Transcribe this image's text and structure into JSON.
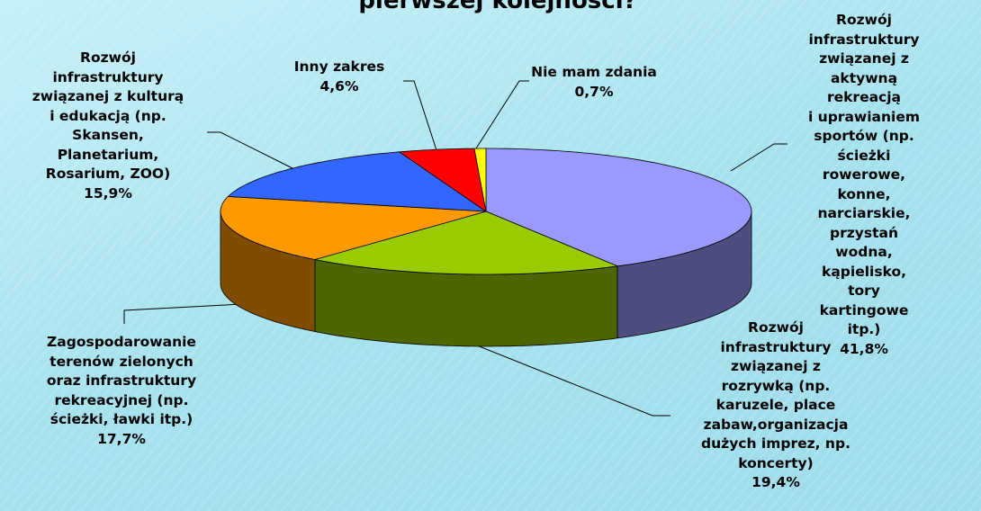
{
  "chart_data": {
    "type": "pie",
    "title": "pierwszej kolejności?",
    "categories": [
      "Rozwój\ninfrastruktury\nzwiązanej z\naktywną rekreacją\ni uprawianiem\nsportów (np.\nścieżki rowerowe,\nkonne, narciarskie,\nprzystań wodna,\nkąpielisko, tory\nkartingowe itp.)",
      "Rozwój\ninfrastruktury\nzwiązanej z\nrozrywką (np.\nkaruzele, place\nzabaw,organizacja\ndużych imprez, np.\nkoncerty)",
      "Zagospodarowanie\nterenów zielonych\noraz infrastruktury\nrekreacyjnej (np.\nścieżki, ławki itp.)",
      "Rozwój\ninfrastruktury\nzwiązanej z kulturą\ni edukacją (np.\nSkansen,\nPlanetarium,\nRosarium, ZOO)",
      "Inny zakres",
      "Nie mam zdania"
    ],
    "values": [
      41.8,
      19.4,
      17.7,
      15.9,
      4.6,
      0.7
    ],
    "value_labels": [
      "41,8%",
      "19,4%",
      "17,7%",
      "15,9%",
      "4,6%",
      "0,7%"
    ],
    "colors": [
      "#9999ff",
      "#99cc00",
      "#ff9900",
      "#3366ff",
      "#ff0000",
      "#ffff00"
    ]
  }
}
